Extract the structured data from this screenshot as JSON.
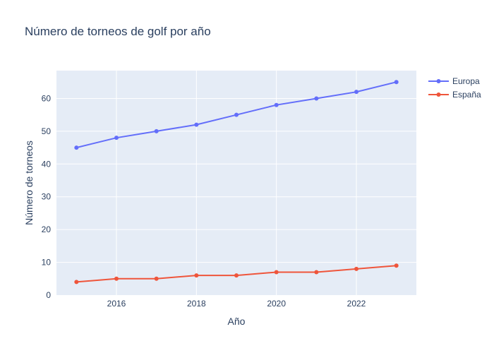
{
  "chart_data": {
    "type": "line",
    "title": "Número de torneos de golf por año",
    "xlabel": "Año",
    "ylabel": "Número de torneos",
    "x": [
      2015,
      2016,
      2017,
      2018,
      2019,
      2020,
      2021,
      2022,
      2023
    ],
    "x_ticks": [
      2016,
      2018,
      2020,
      2022
    ],
    "y_ticks": [
      0,
      10,
      20,
      30,
      40,
      50,
      60
    ],
    "xlim": [
      2014.5,
      2023.5
    ],
    "ylim": [
      0,
      68.5
    ],
    "grid": true,
    "legend_position": "top-right",
    "series": [
      {
        "name": "Europa",
        "color": "#636efa",
        "values": [
          45,
          48,
          50,
          52,
          55,
          58,
          60,
          62,
          65
        ]
      },
      {
        "name": "España",
        "color": "#ef553b",
        "values": [
          4,
          5,
          5,
          6,
          6,
          7,
          7,
          8,
          9
        ]
      }
    ]
  }
}
